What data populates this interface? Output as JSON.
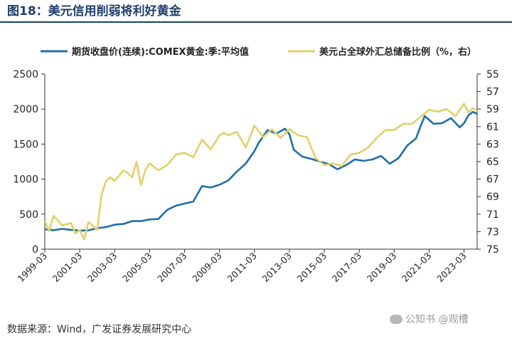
{
  "header": {
    "title": "图18：美元信用削弱将利好黄金"
  },
  "footer": {
    "source": "数据来源：Wind，广发证券发展研究中心"
  },
  "watermark": {
    "text": "公知书 @观槽",
    "icon": "wechat-icon"
  },
  "colors": {
    "gold": "#1f6fa8",
    "reserve": "#e3cf6a",
    "title": "#1f3f6e"
  },
  "chart_data": {
    "type": "line",
    "title": "",
    "legend_position": "top",
    "x_tick_labels": [
      "1999-03",
      "2001-03",
      "2003-03",
      "2005-03",
      "2007-03",
      "2009-03",
      "2011-03",
      "2013-03",
      "2015-03",
      "2017-03",
      "2019-03",
      "2021-03",
      "2023-03"
    ],
    "x_range": [
      1999.0,
      2023.75
    ],
    "y_left": {
      "min": 0,
      "max": 2500,
      "ticks": [
        0,
        500,
        1000,
        1500,
        2000,
        2500
      ]
    },
    "y_right": {
      "min": 55,
      "max": 75,
      "inverted": true,
      "ticks": [
        55,
        57,
        59,
        61,
        63,
        65,
        67,
        69,
        71,
        73,
        75
      ]
    },
    "grid": false,
    "series": [
      {
        "name": "期货收盘价(连续):COMEX黄金:季:平均值",
        "axis": "left",
        "color": "#1f6fa8",
        "x": [
          1999.0,
          1999.5,
          2000.0,
          2000.5,
          2001.0,
          2001.5,
          2002.0,
          2002.5,
          2003.0,
          2003.5,
          2004.0,
          2004.5,
          2005.0,
          2005.5,
          2006.0,
          2006.5,
          2007.0,
          2007.5,
          2008.0,
          2008.5,
          2009.0,
          2009.5,
          2010.0,
          2010.5,
          2011.0,
          2011.25,
          2011.75,
          2012.25,
          2012.75,
          2013.0,
          2013.25,
          2013.75,
          2014.25,
          2014.75,
          2015.25,
          2015.75,
          2016.25,
          2016.75,
          2017.25,
          2017.75,
          2018.25,
          2018.75,
          2019.25,
          2019.75,
          2020.25,
          2020.5,
          2020.75,
          2021.25,
          2021.75,
          2022.25,
          2022.75,
          2023.0,
          2023.25,
          2023.5,
          2023.75
        ],
        "y": [
          285,
          270,
          290,
          275,
          265,
          268,
          300,
          315,
          350,
          360,
          400,
          400,
          425,
          430,
          560,
          620,
          650,
          680,
          900,
          880,
          920,
          980,
          1110,
          1220,
          1400,
          1520,
          1700,
          1650,
          1720,
          1640,
          1420,
          1320,
          1290,
          1250,
          1215,
          1140,
          1200,
          1280,
          1260,
          1280,
          1330,
          1220,
          1300,
          1480,
          1580,
          1750,
          1900,
          1790,
          1800,
          1870,
          1740,
          1800,
          1910,
          1960,
          1930
        ]
      },
      {
        "name": "美元占全球外汇总储备比例（%，右）",
        "axis": "right",
        "color": "#e3cf6a",
        "x": [
          1999.0,
          1999.25,
          1999.5,
          2000.0,
          2000.5,
          2000.75,
          2001.0,
          2001.25,
          2001.5,
          2002.0,
          2002.25,
          2002.5,
          2002.75,
          2003.0,
          2003.5,
          2003.75,
          2004.0,
          2004.25,
          2004.5,
          2004.75,
          2005.0,
          2005.5,
          2006.0,
          2006.5,
          2007.0,
          2007.5,
          2008.0,
          2008.5,
          2009.0,
          2009.25,
          2009.5,
          2010.0,
          2010.5,
          2011.0,
          2011.5,
          2012.0,
          2012.5,
          2013.0,
          2013.5,
          2014.0,
          2014.5,
          2015.0,
          2015.5,
          2016.0,
          2016.5,
          2017.0,
          2017.5,
          2018.0,
          2018.5,
          2019.0,
          2019.5,
          2020.0,
          2020.5,
          2021.0,
          2021.5,
          2022.0,
          2022.5,
          2023.0,
          2023.25,
          2023.5,
          2023.75
        ],
        "y": [
          71.8,
          72.9,
          71.2,
          72.3,
          72.0,
          73.2,
          72.8,
          73.9,
          71.9,
          72.8,
          68.8,
          67.2,
          66.8,
          67.2,
          66.0,
          66.3,
          66.8,
          65.0,
          67.7,
          66.0,
          65.2,
          66.0,
          65.4,
          64.2,
          64.0,
          64.5,
          62.5,
          63.6,
          62.0,
          61.7,
          62.0,
          61.6,
          63.4,
          60.9,
          62.2,
          61.3,
          62.3,
          61.3,
          62.0,
          62.2,
          64.6,
          65.4,
          65.2,
          65.5,
          64.2,
          64.0,
          63.4,
          62.3,
          61.4,
          61.4,
          60.7,
          60.7,
          59.9,
          59.1,
          59.3,
          59.0,
          59.8,
          58.4,
          59.4,
          58.9,
          59.2
        ]
      }
    ]
  }
}
